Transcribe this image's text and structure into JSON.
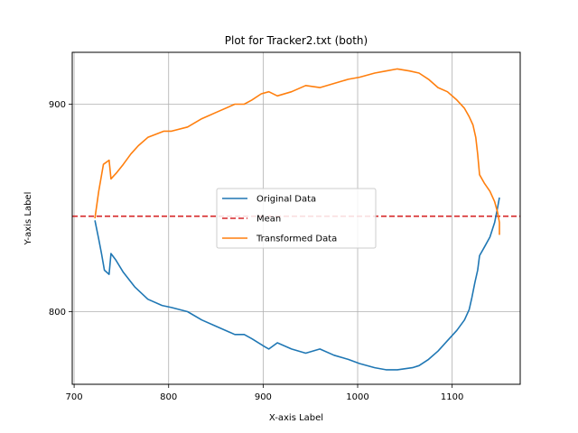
{
  "chart_data": {
    "type": "line",
    "title": "Plot for Tracker2.txt (both)",
    "xlabel": "X-axis Label",
    "ylabel": "Y-axis Label",
    "xlim": [
      698,
      1172
    ],
    "ylim": [
      765,
      925
    ],
    "x_ticks": [
      700,
      800,
      900,
      1000,
      1100
    ],
    "y_ticks": [
      800,
      900
    ],
    "grid": true,
    "legend": {
      "placement": "center",
      "entries": [
        "Original Data",
        "Mean",
        "Transformed Data"
      ]
    },
    "mean": {
      "name": "Mean",
      "y": 846,
      "color": "#d62728",
      "style": "dashed"
    },
    "series": [
      {
        "name": "Original Data",
        "color": "#1f77b4",
        "points": [
          [
            722,
            844
          ],
          [
            726,
            835
          ],
          [
            729,
            828
          ],
          [
            732,
            820
          ],
          [
            737,
            818
          ],
          [
            739,
            828
          ],
          [
            744,
            825
          ],
          [
            752,
            819
          ],
          [
            764,
            812
          ],
          [
            778,
            806
          ],
          [
            793,
            803
          ],
          [
            803,
            802
          ],
          [
            820,
            800
          ],
          [
            835,
            796
          ],
          [
            850,
            793
          ],
          [
            870,
            789
          ],
          [
            880,
            789
          ],
          [
            888,
            787
          ],
          [
            902,
            783
          ],
          [
            906,
            782
          ],
          [
            915,
            785
          ],
          [
            930,
            782
          ],
          [
            945,
            780
          ],
          [
            960,
            782
          ],
          [
            975,
            779
          ],
          [
            990,
            777
          ],
          [
            1002,
            775
          ],
          [
            1018,
            773
          ],
          [
            1030,
            772
          ],
          [
            1042,
            772
          ],
          [
            1058,
            773
          ],
          [
            1065,
            774
          ],
          [
            1075,
            777
          ],
          [
            1085,
            781
          ],
          [
            1095,
            786
          ],
          [
            1105,
            791
          ],
          [
            1113,
            796
          ],
          [
            1118,
            801
          ],
          [
            1121,
            807
          ],
          [
            1124,
            814
          ],
          [
            1127,
            820
          ],
          [
            1129,
            827
          ],
          [
            1134,
            831
          ],
          [
            1140,
            836
          ],
          [
            1145,
            843
          ],
          [
            1148,
            850
          ],
          [
            1150,
            855
          ]
        ]
      },
      {
        "name": "Transformed Data",
        "color": "#ff7f0e",
        "points": [
          [
            722,
            845
          ],
          [
            726,
            858
          ],
          [
            731,
            871
          ],
          [
            737,
            873
          ],
          [
            739,
            864
          ],
          [
            745,
            867
          ],
          [
            752,
            871
          ],
          [
            760,
            876
          ],
          [
            768,
            880
          ],
          [
            778,
            884
          ],
          [
            795,
            887
          ],
          [
            803,
            887
          ],
          [
            820,
            889
          ],
          [
            835,
            893
          ],
          [
            850,
            896
          ],
          [
            870,
            900
          ],
          [
            880,
            900
          ],
          [
            888,
            902
          ],
          [
            898,
            905
          ],
          [
            906,
            906
          ],
          [
            915,
            904
          ],
          [
            930,
            906
          ],
          [
            945,
            909
          ],
          [
            960,
            908
          ],
          [
            975,
            910
          ],
          [
            990,
            912
          ],
          [
            1002,
            913
          ],
          [
            1018,
            915
          ],
          [
            1030,
            916
          ],
          [
            1042,
            917
          ],
          [
            1055,
            916
          ],
          [
            1065,
            915
          ],
          [
            1075,
            912
          ],
          [
            1085,
            908
          ],
          [
            1095,
            906
          ],
          [
            1105,
            902
          ],
          [
            1113,
            898
          ],
          [
            1118,
            894
          ],
          [
            1122,
            890
          ],
          [
            1125,
            884
          ],
          [
            1127,
            876
          ],
          [
            1129,
            866
          ],
          [
            1134,
            862
          ],
          [
            1140,
            858
          ],
          [
            1145,
            853
          ],
          [
            1148,
            848
          ],
          [
            1150,
            843
          ],
          [
            1150,
            837
          ]
        ]
      }
    ]
  }
}
